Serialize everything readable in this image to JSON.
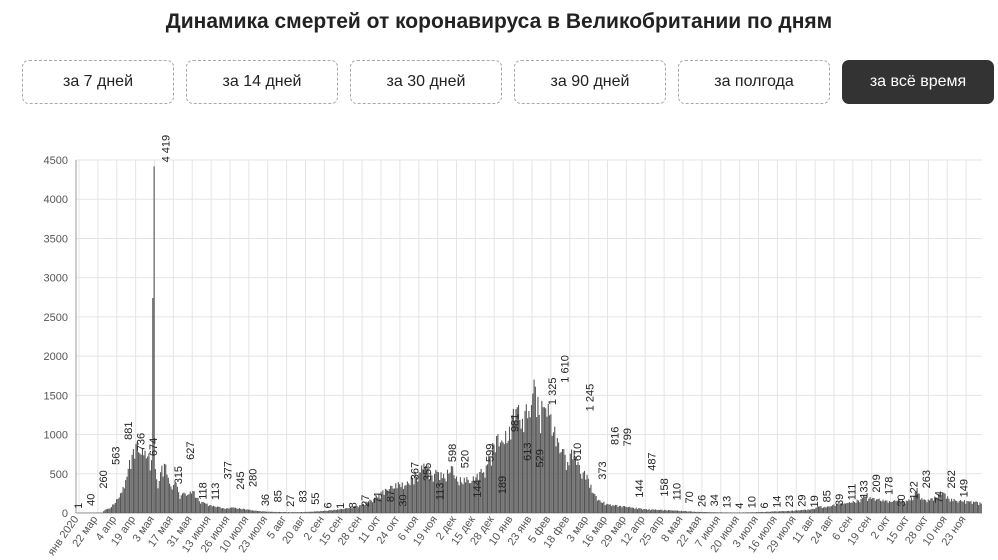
{
  "title": "Динамика смертей от коронавируса в Великобритании по дням",
  "periods": [
    {
      "label": "за 7 дней",
      "active": false
    },
    {
      "label": "за 14 дней",
      "active": false
    },
    {
      "label": "за 30 дней",
      "active": false
    },
    {
      "label": "за 90 дней",
      "active": false
    },
    {
      "label": "за полгода",
      "active": false
    },
    {
      "label": "за всё время",
      "active": true
    }
  ],
  "colors": {
    "bar": "#555555",
    "grid": "#e5e5e5",
    "active_button": "#333333"
  },
  "chart_data": {
    "type": "bar",
    "title": "",
    "xlabel": "",
    "ylabel": "",
    "ylim": [
      0,
      4500
    ],
    "yticks": [
      0,
      500,
      1000,
      1500,
      2000,
      2500,
      3000,
      3500,
      4000,
      4500
    ],
    "grid": true,
    "x_tick_labels": [
      "янв 2020",
      "22 мар",
      "4 апр",
      "19 апр",
      "3 мая",
      "17 мая",
      "31 мая",
      "13 июня",
      "26 июня",
      "10 июля",
      "23 июля",
      "5 авг",
      "20 авг",
      "2 сен",
      "15 сен",
      "28 сен",
      "11 окт",
      "24 окт",
      "6 ноя",
      "19 ноя",
      "2 дек",
      "15 дек",
      "28 дек",
      "10 янв",
      "23 янв",
      "5 фев",
      "18 фев",
      "3 мар",
      "16 мар",
      "29 мар",
      "12 апр",
      "25 апр",
      "8 мая",
      "22 мая",
      "7 июня",
      "20 июня",
      "3 июля",
      "16 июля",
      "29 июля",
      "11 авг",
      "24 авг",
      "6 сен",
      "19 сен",
      "2 окт",
      "15 окт",
      "28 окт",
      "10 ноя",
      "23 ноя"
    ],
    "labeled_values": [
      1,
      40,
      260,
      563,
      881,
      736,
      674,
      4419,
      315,
      627,
      118,
      113,
      377,
      245,
      280,
      36,
      85,
      27,
      83,
      55,
      6,
      1,
      8,
      27,
      71,
      87,
      30,
      367,
      355,
      113,
      598,
      520,
      144,
      599,
      189,
      981,
      613,
      529,
      1325,
      1610,
      610,
      1245,
      373,
      816,
      799,
      144,
      487,
      158,
      110,
      70,
      26,
      34,
      13,
      4,
      10,
      6,
      14,
      23,
      29,
      19,
      85,
      39,
      111,
      133,
      209,
      178,
      30,
      122,
      263,
      74,
      262,
      149
    ],
    "anchors": [
      [
        0,
        1
      ],
      [
        20,
        5
      ],
      [
        22,
        40
      ],
      [
        26,
        60
      ],
      [
        32,
        180
      ],
      [
        35,
        260
      ],
      [
        38,
        420
      ],
      [
        40,
        563
      ],
      [
        43,
        740
      ],
      [
        46,
        881
      ],
      [
        49,
        760
      ],
      [
        52,
        736
      ],
      [
        55,
        720
      ],
      [
        58,
        674
      ],
      [
        60,
        4419
      ],
      [
        61,
        560
      ],
      [
        63,
        315
      ],
      [
        65,
        520
      ],
      [
        68,
        627
      ],
      [
        71,
        450
      ],
      [
        74,
        300
      ],
      [
        77,
        380
      ],
      [
        80,
        180
      ],
      [
        83,
        260
      ],
      [
        86,
        230
      ],
      [
        90,
        280
      ],
      [
        95,
        150
      ],
      [
        100,
        120
      ],
      [
        105,
        85
      ],
      [
        110,
        80
      ],
      [
        115,
        50
      ],
      [
        120,
        70
      ],
      [
        130,
        50
      ],
      [
        140,
        25
      ],
      [
        150,
        15
      ],
      [
        160,
        12
      ],
      [
        170,
        10
      ],
      [
        180,
        15
      ],
      [
        190,
        25
      ],
      [
        200,
        40
      ],
      [
        210,
        60
      ],
      [
        220,
        100
      ],
      [
        230,
        180
      ],
      [
        240,
        300
      ],
      [
        250,
        367
      ],
      [
        255,
        355
      ],
      [
        260,
        450
      ],
      [
        265,
        520
      ],
      [
        270,
        598
      ],
      [
        275,
        480
      ],
      [
        280,
        520
      ],
      [
        285,
        440
      ],
      [
        290,
        599
      ],
      [
        295,
        400
      ],
      [
        300,
        450
      ],
      [
        305,
        380
      ],
      [
        310,
        500
      ],
      [
        315,
        520
      ],
      [
        320,
        700
      ],
      [
        325,
        981
      ],
      [
        330,
        900
      ],
      [
        335,
        1100
      ],
      [
        340,
        1325
      ],
      [
        345,
        1200
      ],
      [
        350,
        1300
      ],
      [
        355,
        1610
      ],
      [
        358,
        1250
      ],
      [
        362,
        1350
      ],
      [
        366,
        1245
      ],
      [
        370,
        1100
      ],
      [
        373,
        900
      ],
      [
        376,
        816
      ],
      [
        380,
        650
      ],
      [
        385,
        799
      ],
      [
        390,
        500
      ],
      [
        395,
        487
      ],
      [
        400,
        250
      ],
      [
        405,
        160
      ],
      [
        410,
        110
      ],
      [
        420,
        90
      ],
      [
        430,
        70
      ],
      [
        440,
        50
      ],
      [
        450,
        40
      ],
      [
        460,
        34
      ],
      [
        470,
        25
      ],
      [
        480,
        15
      ],
      [
        490,
        10
      ],
      [
        500,
        8
      ],
      [
        510,
        6
      ],
      [
        520,
        8
      ],
      [
        530,
        12
      ],
      [
        540,
        20
      ],
      [
        550,
        25
      ],
      [
        560,
        35
      ],
      [
        570,
        50
      ],
      [
        575,
        85
      ],
      [
        580,
        70
      ],
      [
        585,
        100
      ],
      [
        590,
        111
      ],
      [
        595,
        120
      ],
      [
        600,
        133
      ],
      [
        605,
        160
      ],
      [
        610,
        209
      ],
      [
        615,
        180
      ],
      [
        620,
        178
      ],
      [
        625,
        150
      ],
      [
        630,
        140
      ],
      [
        635,
        160
      ],
      [
        640,
        150
      ],
      [
        645,
        160
      ],
      [
        650,
        263
      ],
      [
        655,
        170
      ],
      [
        660,
        160
      ],
      [
        665,
        200
      ],
      [
        670,
        262
      ],
      [
        675,
        180
      ],
      [
        680,
        160
      ],
      [
        685,
        150
      ],
      [
        690,
        149
      ],
      [
        695,
        140
      ],
      [
        700,
        120
      ]
    ]
  }
}
